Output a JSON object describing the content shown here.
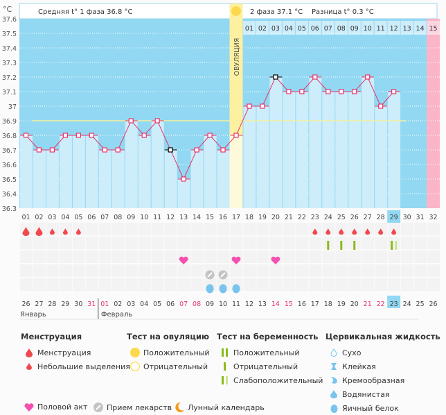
{
  "header": {
    "unit_label": "°C",
    "phase1_avg": "Средняя t° 1 фаза 36.8 °C",
    "phase2_avg": "2 фаза 37.1 °C",
    "difference": "Разница t° 0.3 °C",
    "ovulation_label": "ОВУЛЯЦИЯ"
  },
  "colors": {
    "chart_bg": "#92d8f2",
    "bar_fill": "#cdedfb",
    "ovulation_band": "#fdf0a0",
    "ovulation_band_light": "#fef9d8",
    "next_cycle": "#fcb4c8",
    "line": "#e8336a",
    "avg_line": "#f4f0a0",
    "accent_red": "#e8336a",
    "drop_red": "#f04850",
    "test_green": "#8bbb1a",
    "test_green_light": "#cde39a",
    "heart_pink": "#f54fb0",
    "pill_gray": "#c4c4c4",
    "egg_blue": "#78c4ee",
    "sun_yellow": "#fcd94c",
    "moon_orange": "#f59a1a"
  },
  "chart_data": {
    "type": "line",
    "title": "",
    "ylabel": "°C",
    "ylim": [
      36.3,
      37.6
    ],
    "yticks": [
      "37.6",
      "37.5",
      "37.4",
      "37.3",
      "37.2",
      "37.1",
      "37",
      "36.9",
      "36.8",
      "36.7",
      "36.6",
      "36.5",
      "36.4",
      "36.3"
    ],
    "cycle_days": [
      "01",
      "02",
      "03",
      "04",
      "05",
      "06",
      "07",
      "08",
      "09",
      "10",
      "11",
      "12",
      "13",
      "14",
      "15",
      "16",
      "17",
      "18",
      "19",
      "20",
      "21",
      "22",
      "23",
      "24",
      "25",
      "26",
      "27",
      "28",
      "29",
      "30",
      "31",
      "32"
    ],
    "post_ovulation_days": [
      "01",
      "02",
      "03",
      "04",
      "05",
      "06",
      "07",
      "08",
      "09",
      "10",
      "11",
      "12",
      "13",
      "14",
      "15"
    ],
    "temperatures": [
      36.8,
      36.7,
      36.7,
      36.8,
      36.8,
      36.8,
      36.7,
      36.7,
      36.9,
      36.8,
      36.9,
      36.7,
      36.5,
      36.7,
      36.8,
      36.7,
      36.8,
      37.0,
      37.0,
      37.2,
      37.1,
      37.1,
      37.2,
      37.1,
      37.1,
      37.1,
      37.2,
      37.0,
      37.1,
      null,
      null,
      null
    ],
    "highlighted_points": [
      12,
      20
    ],
    "ovulation_day": 17,
    "today_cycle_day": 29,
    "next_cycle_day": 32,
    "coverline": 36.9,
    "calendar_dates": [
      "26",
      "27",
      "28",
      "29",
      "30",
      "31",
      "01",
      "02",
      "03",
      "04",
      "05",
      "06",
      "07",
      "08",
      "09",
      "10",
      "11",
      "12",
      "13",
      "14",
      "15",
      "16",
      "17",
      "18",
      "19",
      "20",
      "21",
      "22",
      "23",
      "24",
      "25",
      "26"
    ],
    "red_dates_index": [
      5,
      6,
      12,
      13,
      19,
      20,
      26,
      27
    ],
    "months": [
      "Январь",
      "Февраль"
    ],
    "menstruation": {
      "heavy": [
        1,
        2
      ],
      "light": [
        3,
        4,
        5,
        23,
        24,
        25,
        26,
        27,
        28,
        29
      ]
    },
    "pregnancy_test": {
      "negative": [
        24,
        25,
        26
      ],
      "faint_positive": [
        29
      ]
    },
    "intercourse": [
      13,
      17,
      20
    ],
    "medication": [
      15,
      16
    ],
    "cervical_egg_white": [
      15,
      16,
      17
    ]
  },
  "legend": {
    "menstruation": {
      "title": "Менструация",
      "items": [
        "Менструация",
        "Небольшие выделения"
      ]
    },
    "ovulation_test": {
      "title": "Тест на овуляцию",
      "items": [
        "Положительный",
        "Отрицательный"
      ]
    },
    "pregnancy_test": {
      "title": "Тест на беременность",
      "items": [
        "Положительный",
        "Отрицательный",
        "Слабоположительный"
      ]
    },
    "cervical": {
      "title": "Цервикальная жидкость",
      "items": [
        "Сухо",
        "Клейкая",
        "Кремообразная",
        "Водянистая",
        "Яичный белок"
      ]
    },
    "other": [
      "Половой акт",
      "Прием лекарств",
      "Лунный календарь"
    ]
  }
}
